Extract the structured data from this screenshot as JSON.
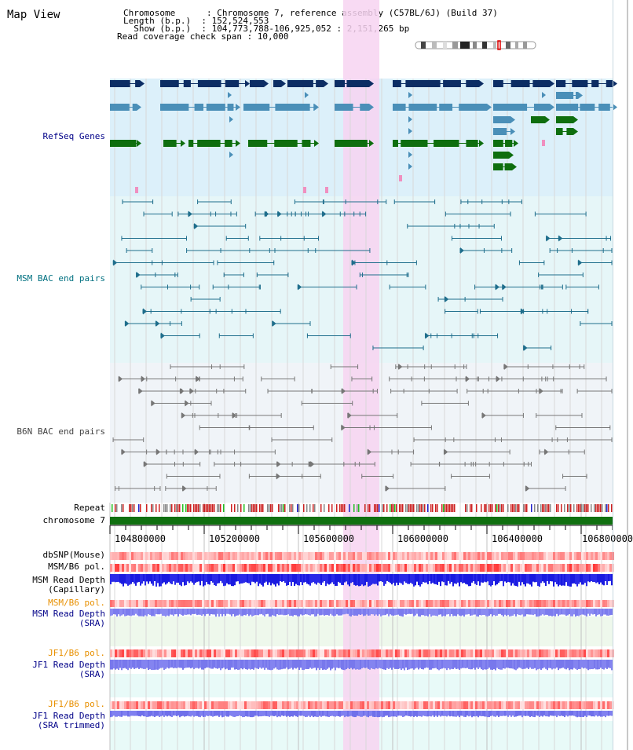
{
  "header": {
    "title": "Map View",
    "info_lines": [
      "Chromosome      : Chromosome 7, reference assembly (C57BL/6J) (Build 37)",
      "Length (b.p.)  : 152,524,553",
      "  Show (b.p.)  : 104,773,788-106,925,052 : 2,151,265 bp",
      "Read coverage check span : 10,000"
    ]
  },
  "tracks": {
    "refseq": "RefSeq Genes",
    "msm_bac": "MSM BAC end pairs",
    "b6n_bac": "B6N BAC end pairs",
    "repeat": "Repeat",
    "chromosome": "chromosome 7",
    "dbsnp": "dbSNP(Mouse)",
    "msm_pol_1": "MSM/B6 pol.",
    "msm_depth_cap_1": "MSM Read Depth",
    "msm_depth_cap_2": "(Capillary)",
    "msm_pol_2": "MSM/B6 pol.",
    "msm_depth_sra_1": "MSM Read Depth",
    "msm_depth_sra_2": "(SRA)",
    "jf1_pol_1": "JF1/B6 pol.",
    "jf1_depth_sra_1": "JF1 Read Depth",
    "jf1_depth_sra_2": "(SRA)",
    "jf1_pol_2": "JF1/B6 pol.",
    "jf1_depth_trim_1": "JF1 Read Depth",
    "jf1_depth_trim_2": "(SRA trimmed)"
  },
  "axis": {
    "ticks": [
      "104800000",
      "105200000",
      "105600000",
      "106000000",
      "106400000",
      "106800000"
    ]
  },
  "colors": {
    "refseq_bg": "#dcf0fa",
    "bac_bg": "#e6f6f8",
    "highlight": "#f7d4f1",
    "gene_dark": "#0c2d64",
    "gene_mid": "#4a8fb8",
    "gene_green": "#0e6e0e",
    "msm_line": "#1f6e8c",
    "b6n_line": "#777777",
    "chrom_bar": "#107010",
    "depth_dark": "#1a1ae0",
    "depth_light": "#8080f0",
    "pol_red": "#e84040",
    "orange_label": "#e89000",
    "navy_label": "#000088",
    "teal_label": "#007080"
  }
}
